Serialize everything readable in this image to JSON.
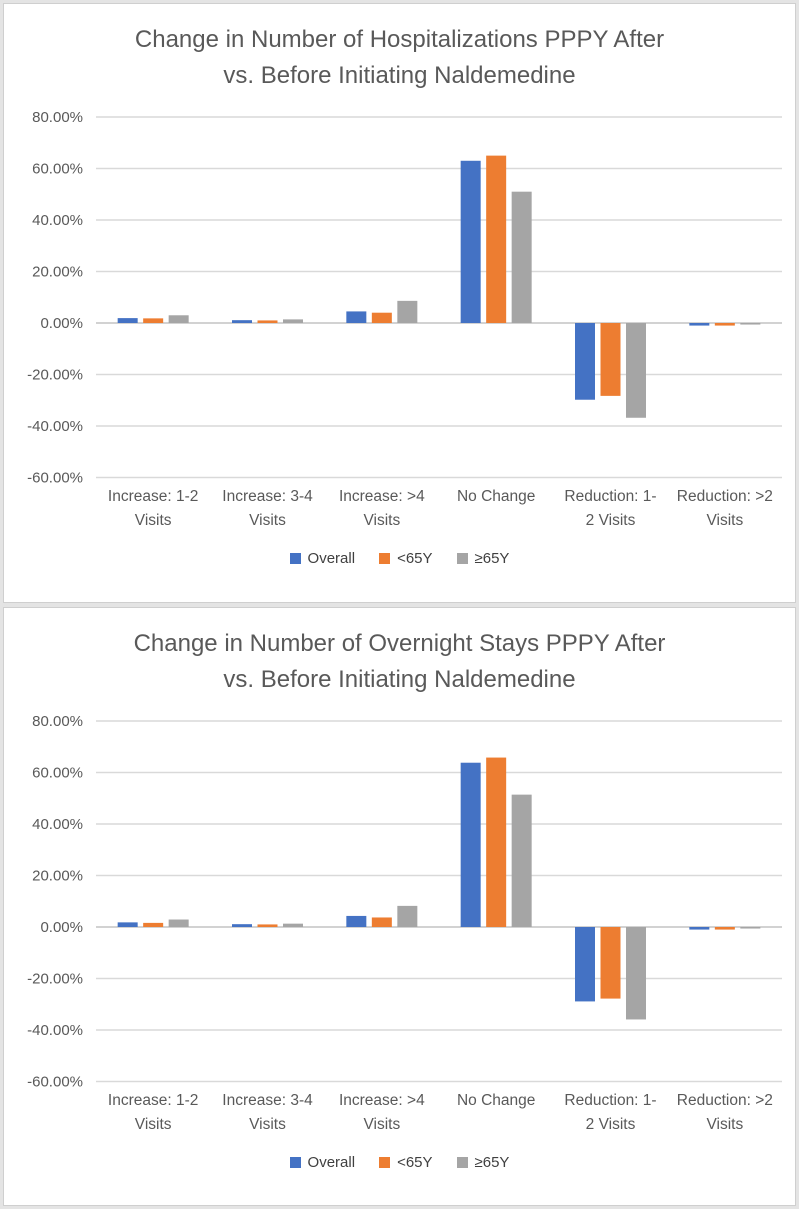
{
  "page": {
    "background": "#e4e4e4",
    "panel_background": "#ffffff",
    "panel_border_color": "#cfcfcf",
    "gridline_color": "#d9d9d9",
    "axis_line_color": "#d2d2d2",
    "text_color": "#595959"
  },
  "legend": {
    "items": [
      {
        "name": "overall",
        "label": "Overall",
        "color": "#4472C4"
      },
      {
        "name": "under-65",
        "label": "<65Y",
        "color": "#ED7D31"
      },
      {
        "name": "65-and-over",
        "label": "≥65Y",
        "color": "#A5A5A5"
      }
    ]
  },
  "chart_data": [
    {
      "type": "bar",
      "title": "Change in Number of Hospitalizations PPPY After vs. Before Initiating Naldemedine",
      "title_lines": [
        "Change in Number of Hospitalizations PPPY After",
        "vs. Before Initiating Naldemedine"
      ],
      "categories": [
        "Increase: 1-2 Visits",
        "Increase: 3-4 Visits",
        "Increase: >4 Visits",
        "No Change",
        "Reduction: 1-2 Visits",
        "Reduction: >2 Visits"
      ],
      "category_label_lines": [
        [
          "Increase: 1-2",
          "Visits"
        ],
        [
          "Increase: 3-4",
          "Visits"
        ],
        [
          "Increase: >4",
          "Visits"
        ],
        [
          "No Change"
        ],
        [
          "Reduction: 1-",
          "2 Visits"
        ],
        [
          "Reduction: >2",
          "Visits"
        ]
      ],
      "series": [
        {
          "name": "Overall",
          "color": "#4472C4",
          "values": [
            1.9,
            1.1,
            4.5,
            63.0,
            -29.8,
            -1.0
          ]
        },
        {
          "name": "<65Y",
          "color": "#ED7D31",
          "values": [
            1.8,
            1.0,
            4.0,
            65.0,
            -28.3,
            -1.0
          ]
        },
        {
          "name": "≥65Y",
          "color": "#A5A5A5",
          "values": [
            3.0,
            1.4,
            8.6,
            51.0,
            -36.8,
            -0.6
          ]
        }
      ],
      "xlabel": "",
      "ylabel": "",
      "ylim": [
        -60,
        80
      ],
      "y_ticks": [
        "80.00%",
        "60.00%",
        "40.00%",
        "20.00%",
        "0.00%",
        "-20.00%",
        "-40.00%",
        "-60.00%"
      ],
      "grid": true,
      "legend_position": "bottom"
    },
    {
      "type": "bar",
      "title": "Change in Number of Overnight Stays PPPY After vs. Before Initiating Naldemedine",
      "title_lines": [
        "Change in Number of Overnight Stays PPPY After",
        "vs. Before Initiating Naldemedine"
      ],
      "categories": [
        "Increase: 1-2 Visits",
        "Increase: 3-4 Visits",
        "Increase: >4 Visits",
        "No Change",
        "Reduction: 1-2 Visits",
        "Reduction: >2 Visits"
      ],
      "category_label_lines": [
        [
          "Increase: 1-2",
          "Visits"
        ],
        [
          "Increase: 3-4",
          "Visits"
        ],
        [
          "Increase: >4",
          "Visits"
        ],
        [
          "No Change"
        ],
        [
          "Reduction: 1-",
          "2 Visits"
        ],
        [
          "Reduction: >2",
          "Visits"
        ]
      ],
      "series": [
        {
          "name": "Overall",
          "color": "#4472C4",
          "values": [
            1.8,
            1.1,
            4.3,
            63.8,
            -28.9,
            -1.0
          ]
        },
        {
          "name": "<65Y",
          "color": "#ED7D31",
          "values": [
            1.6,
            1.0,
            3.7,
            65.8,
            -27.8,
            -1.0
          ]
        },
        {
          "name": "≥65Y",
          "color": "#A5A5A5",
          "values": [
            2.9,
            1.3,
            8.2,
            51.4,
            -35.9,
            -0.6
          ]
        }
      ],
      "xlabel": "",
      "ylabel": "",
      "ylim": [
        -60,
        80
      ],
      "y_ticks": [
        "80.00%",
        "60.00%",
        "40.00%",
        "20.00%",
        "0.00%",
        "-20.00%",
        "-40.00%",
        "-60.00%"
      ],
      "grid": true,
      "legend_position": "bottom"
    }
  ]
}
